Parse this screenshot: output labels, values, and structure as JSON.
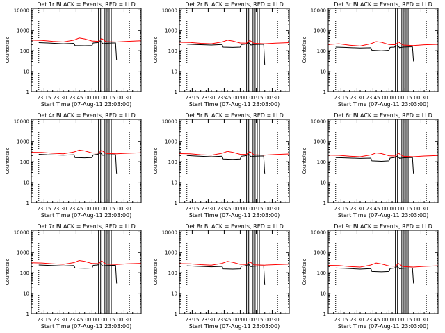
{
  "figure": {
    "background": "#ffffff",
    "event_color": "#000000",
    "lld_color": "#ff0000",
    "ylabel": "Counts/sec",
    "xlabel": "Start Time (07-Aug-11 23:03:00)",
    "time_start_min": 0,
    "time_end_min": 103,
    "x_tick_labels": [
      "23:15",
      "23:30",
      "23:45",
      "00:00",
      "00:15",
      "00:30"
    ],
    "x_tick_minutes": [
      12,
      27,
      42,
      57,
      72,
      87
    ],
    "y_range": [
      1,
      12000
    ],
    "y_tick_labels": [
      "1",
      "10",
      "100",
      "1000",
      "10000"
    ],
    "y_tick_values": [
      1,
      10,
      100,
      1000,
      10000
    ],
    "dotted_line_minutes": [
      7,
      92
    ],
    "spike_minutes": [
      63,
      65,
      69,
      71,
      73,
      75
    ]
  },
  "chart_data": [
    {
      "type": "line",
      "title": "Det 1r BLACK = Events, RED = LLD",
      "xlabel": "Start Time (07-Aug-11 23:03:00)",
      "ylabel": "Counts/sec",
      "ylim": [
        1,
        12000
      ],
      "series": [
        {
          "name": "Events",
          "color": "#000000",
          "x": [
            7,
            15,
            30,
            40,
            41,
            50,
            57,
            58,
            62,
            63,
            65,
            67,
            70,
            76,
            79,
            80
          ],
          "y": [
            250,
            240,
            220,
            230,
            180,
            175,
            180,
            240,
            250,
            260,
            300,
            220,
            230,
            240,
            240,
            35
          ]
        },
        {
          "name": "LLD",
          "color": "#ff0000",
          "x": [
            0,
            10,
            20,
            30,
            40,
            45,
            50,
            57,
            63,
            66,
            70,
            80,
            90,
            103
          ],
          "y": [
            330,
            320,
            290,
            270,
            330,
            420,
            380,
            300,
            290,
            400,
            280,
            270,
            290,
            310
          ]
        }
      ]
    },
    {
      "type": "line",
      "title": "Det 2r BLACK = Events, RED = LLD",
      "xlabel": "Start Time (07-Aug-11 23:03:00)",
      "ylabel": "Counts/sec",
      "ylim": [
        1,
        12000
      ],
      "series": [
        {
          "name": "Events",
          "color": "#000000",
          "x": [
            7,
            15,
            30,
            40,
            41,
            50,
            57,
            58,
            62,
            63,
            65,
            67,
            70,
            76,
            79,
            80
          ],
          "y": [
            210,
            200,
            190,
            200,
            150,
            145,
            150,
            200,
            210,
            220,
            250,
            190,
            200,
            205,
            205,
            20
          ]
        },
        {
          "name": "LLD",
          "color": "#ff0000",
          "x": [
            0,
            10,
            20,
            30,
            40,
            45,
            50,
            57,
            63,
            66,
            70,
            80,
            90,
            103
          ],
          "y": [
            260,
            255,
            230,
            220,
            270,
            330,
            300,
            240,
            235,
            320,
            230,
            220,
            235,
            250
          ]
        }
      ]
    },
    {
      "type": "line",
      "title": "Det 3r BLACK = Events, RED = LLD",
      "xlabel": "Start Time (07-Aug-11 23:03:00)",
      "ylabel": "Counts/sec",
      "ylim": [
        1,
        12000
      ],
      "series": [
        {
          "name": "Events",
          "color": "#000000",
          "x": [
            7,
            15,
            30,
            40,
            41,
            50,
            57,
            58,
            62,
            63,
            65,
            67,
            70,
            76,
            79,
            80
          ],
          "y": [
            150,
            145,
            135,
            140,
            105,
            100,
            105,
            145,
            150,
            160,
            180,
            140,
            150,
            155,
            155,
            30
          ]
        },
        {
          "name": "LLD",
          "color": "#ff0000",
          "x": [
            0,
            10,
            20,
            30,
            40,
            45,
            50,
            57,
            63,
            66,
            70,
            80,
            90,
            103
          ],
          "y": [
            200,
            220,
            185,
            170,
            220,
            280,
            260,
            200,
            195,
            270,
            190,
            180,
            195,
            205
          ]
        }
      ]
    },
    {
      "type": "line",
      "title": "Det 4r BLACK = Events, RED = LLD",
      "xlabel": "Start Time (07-Aug-11 23:03:00)",
      "ylabel": "Counts/sec",
      "ylim": [
        1,
        12000
      ],
      "series": [
        {
          "name": "Events",
          "color": "#000000",
          "x": [
            7,
            15,
            30,
            40,
            41,
            50,
            57,
            58,
            62,
            63,
            65,
            67,
            70,
            76,
            79,
            80
          ],
          "y": [
            230,
            220,
            210,
            220,
            160,
            155,
            160,
            215,
            230,
            240,
            270,
            205,
            215,
            220,
            220,
            25
          ]
        },
        {
          "name": "LLD",
          "color": "#ff0000",
          "x": [
            0,
            10,
            20,
            30,
            40,
            45,
            50,
            57,
            63,
            66,
            70,
            80,
            90,
            103
          ],
          "y": [
            290,
            285,
            260,
            245,
            300,
            370,
            340,
            270,
            265,
            360,
            255,
            245,
            260,
            275
          ]
        }
      ]
    },
    {
      "type": "line",
      "title": "Det 5r BLACK = Events, RED = LLD",
      "xlabel": "Start Time (07-Aug-11 23:03:00)",
      "ylabel": "Counts/sec",
      "ylim": [
        1,
        12000
      ],
      "series": [
        {
          "name": "Events",
          "color": "#000000",
          "x": [
            7,
            15,
            30,
            40,
            41,
            50,
            57,
            58,
            62,
            63,
            65,
            67,
            70,
            76,
            79,
            80
          ],
          "y": [
            200,
            190,
            175,
            185,
            135,
            130,
            135,
            185,
            195,
            205,
            230,
            175,
            185,
            190,
            190,
            25
          ]
        },
        {
          "name": "LLD",
          "color": "#ff0000",
          "x": [
            0,
            10,
            20,
            30,
            40,
            45,
            50,
            57,
            63,
            66,
            70,
            80,
            90,
            103
          ],
          "y": [
            250,
            245,
            220,
            210,
            260,
            320,
            290,
            230,
            225,
            310,
            220,
            210,
            225,
            240
          ]
        }
      ]
    },
    {
      "type": "line",
      "title": "Det 6r BLACK = Events, RED = LLD",
      "xlabel": "Start Time (07-Aug-11 23:03:00)",
      "ylabel": "Counts/sec",
      "ylim": [
        1,
        12000
      ],
      "series": [
        {
          "name": "Events",
          "color": "#000000",
          "x": [
            7,
            15,
            30,
            40,
            41,
            50,
            57,
            58,
            62,
            63,
            65,
            67,
            70,
            76,
            79,
            80
          ],
          "y": [
            160,
            155,
            145,
            150,
            110,
            105,
            110,
            150,
            160,
            170,
            190,
            145,
            155,
            160,
            160,
            25
          ]
        },
        {
          "name": "LLD",
          "color": "#ff0000",
          "x": [
            0,
            10,
            20,
            30,
            40,
            45,
            50,
            57,
            63,
            66,
            70,
            80,
            90,
            103
          ],
          "y": [
            210,
            205,
            185,
            175,
            215,
            270,
            250,
            195,
            190,
            260,
            185,
            175,
            190,
            200
          ]
        }
      ]
    },
    {
      "type": "line",
      "title": "Det 7r BLACK = Events, RED = LLD",
      "xlabel": "Start Time (07-Aug-11 23:03:00)",
      "ylabel": "Counts/sec",
      "ylim": [
        1,
        12000
      ],
      "series": [
        {
          "name": "Events",
          "color": "#000000",
          "x": [
            7,
            15,
            30,
            40,
            41,
            50,
            57,
            58,
            62,
            63,
            65,
            67,
            70,
            76,
            79,
            80
          ],
          "y": [
            240,
            230,
            215,
            225,
            170,
            165,
            170,
            230,
            240,
            250,
            285,
            215,
            225,
            230,
            230,
            30
          ]
        },
        {
          "name": "LLD",
          "color": "#ff0000",
          "x": [
            0,
            10,
            20,
            30,
            40,
            45,
            50,
            57,
            63,
            66,
            70,
            80,
            90,
            103
          ],
          "y": [
            310,
            300,
            275,
            260,
            315,
            400,
            360,
            285,
            280,
            380,
            265,
            255,
            275,
            290
          ]
        }
      ]
    },
    {
      "type": "line",
      "title": "Det 8r BLACK = Events, RED = LLD",
      "xlabel": "Start Time (07-Aug-11 23:03:00)",
      "ylabel": "Counts/sec",
      "ylim": [
        1,
        12000
      ],
      "series": [
        {
          "name": "Events",
          "color": "#000000",
          "x": [
            7,
            15,
            30,
            40,
            41,
            50,
            57,
            58,
            62,
            63,
            65,
            67,
            70,
            76,
            79,
            80
          ],
          "y": [
            220,
            210,
            195,
            205,
            155,
            150,
            155,
            210,
            220,
            230,
            260,
            200,
            210,
            215,
            215,
            25
          ]
        },
        {
          "name": "LLD",
          "color": "#ff0000",
          "x": [
            0,
            10,
            20,
            30,
            40,
            45,
            50,
            57,
            63,
            66,
            70,
            80,
            90,
            103
          ],
          "y": [
            280,
            275,
            250,
            235,
            290,
            360,
            325,
            260,
            255,
            345,
            245,
            235,
            250,
            265
          ]
        }
      ]
    },
    {
      "type": "line",
      "title": "Det 9r BLACK = Events, RED = LLD",
      "xlabel": "Start Time (07-Aug-11 23:03:00)",
      "ylabel": "Counts/sec",
      "ylim": [
        1,
        12000
      ],
      "series": [
        {
          "name": "Events",
          "color": "#000000",
          "x": [
            7,
            15,
            30,
            40,
            41,
            50,
            57,
            58,
            62,
            63,
            65,
            67,
            70,
            76,
            79,
            80
          ],
          "y": [
            170,
            165,
            150,
            160,
            115,
            110,
            115,
            160,
            170,
            180,
            200,
            155,
            165,
            170,
            170,
            30
          ]
        },
        {
          "name": "LLD",
          "color": "#ff0000",
          "x": [
            0,
            10,
            20,
            30,
            40,
            45,
            50,
            57,
            63,
            66,
            70,
            80,
            90,
            103
          ],
          "y": [
            230,
            225,
            200,
            190,
            240,
            300,
            270,
            215,
            210,
            285,
            200,
            190,
            205,
            220
          ]
        }
      ]
    }
  ]
}
